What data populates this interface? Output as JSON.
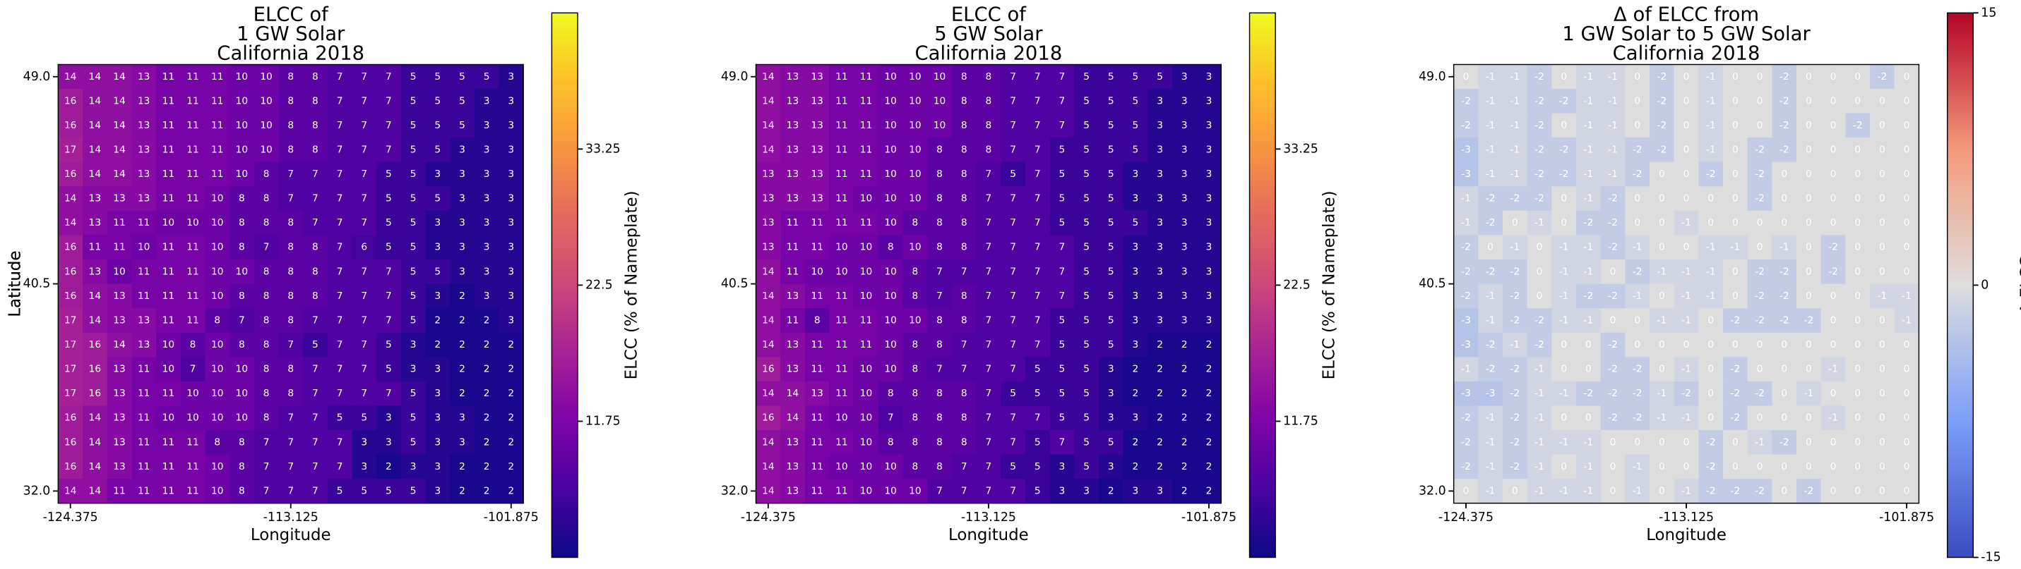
{
  "chart_data": [
    {
      "type": "heatmap",
      "title": [
        "ELCC of",
        "1 GW Solar",
        "California 2018"
      ],
      "xlabel": "Longitude",
      "ylabel": "Latitude",
      "xlim": [
        -125,
        -101.25
      ],
      "ylim": [
        31.5,
        49.5
      ],
      "xticks": [
        -124.375,
        -113.125,
        -101.875
      ],
      "yticks": [
        {
          "value": 49,
          "label": "49.0"
        },
        40.5,
        {
          "value": 32,
          "label": "32.0"
        }
      ],
      "cmap": "plasma",
      "clim": [
        1,
        44
      ],
      "cticks": [
        11.75,
        22.5,
        33.25
      ],
      "colorbar_label": "ELCC (% of Nameplate)",
      "z": [
        [
          14,
          14,
          14,
          13,
          11,
          11,
          11,
          10,
          10,
          8,
          8,
          7,
          7,
          7,
          5,
          5,
          5,
          5,
          3
        ],
        [
          16,
          14,
          14,
          13,
          11,
          11,
          11,
          10,
          10,
          8,
          8,
          7,
          7,
          7,
          5,
          5,
          5,
          3,
          3
        ],
        [
          16,
          14,
          14,
          13,
          11,
          11,
          11,
          10,
          10,
          8,
          8,
          7,
          7,
          7,
          5,
          5,
          5,
          3,
          3
        ],
        [
          17,
          14,
          14,
          13,
          11,
          11,
          11,
          10,
          10,
          8,
          8,
          7,
          7,
          7,
          5,
          5,
          3,
          3,
          3
        ],
        [
          16,
          14,
          14,
          13,
          11,
          11,
          11,
          10,
          8,
          7,
          7,
          7,
          7,
          5,
          5,
          3,
          3,
          3,
          3
        ],
        [
          14,
          13,
          13,
          13,
          11,
          11,
          10,
          8,
          8,
          7,
          7,
          7,
          7,
          5,
          5,
          5,
          3,
          3,
          3
        ],
        [
          14,
          13,
          11,
          11,
          10,
          10,
          10,
          8,
          8,
          8,
          7,
          7,
          7,
          5,
          5,
          3,
          3,
          3,
          3
        ],
        [
          16,
          11,
          11,
          10,
          11,
          11,
          10,
          8,
          7,
          8,
          8,
          7,
          6,
          5,
          5,
          3,
          3,
          3,
          3
        ],
        [
          16,
          13,
          10,
          11,
          11,
          11,
          10,
          10,
          8,
          8,
          8,
          7,
          7,
          7,
          5,
          5,
          3,
          3,
          3
        ],
        [
          16,
          14,
          13,
          11,
          11,
          11,
          10,
          8,
          8,
          8,
          8,
          7,
          7,
          7,
          5,
          3,
          2,
          3,
          3
        ],
        [
          17,
          14,
          13,
          13,
          11,
          11,
          8,
          7,
          8,
          8,
          7,
          7,
          7,
          7,
          5,
          2,
          2,
          2,
          3
        ],
        [
          17,
          16,
          14,
          13,
          10,
          8,
          10,
          8,
          8,
          7,
          5,
          7,
          7,
          5,
          3,
          2,
          2,
          2,
          2
        ],
        [
          17,
          16,
          13,
          11,
          10,
          7,
          10,
          10,
          8,
          8,
          7,
          7,
          7,
          5,
          3,
          3,
          2,
          2,
          2
        ],
        [
          17,
          16,
          13,
          11,
          11,
          10,
          10,
          10,
          8,
          8,
          7,
          7,
          7,
          7,
          5,
          3,
          2,
          2,
          2
        ],
        [
          16,
          14,
          13,
          11,
          10,
          10,
          10,
          10,
          8,
          7,
          7,
          5,
          5,
          3,
          5,
          3,
          3,
          2,
          2
        ],
        [
          16,
          14,
          13,
          11,
          11,
          11,
          8,
          8,
          7,
          7,
          7,
          7,
          3,
          3,
          5,
          3,
          3,
          2,
          2
        ],
        [
          16,
          14,
          13,
          11,
          11,
          11,
          10,
          8,
          7,
          7,
          7,
          7,
          3,
          2,
          3,
          3,
          2,
          2,
          2
        ],
        [
          14,
          14,
          11,
          11,
          11,
          11,
          10,
          8,
          7,
          7,
          7,
          5,
          5,
          5,
          5,
          3,
          2,
          2,
          2
        ]
      ]
    },
    {
      "type": "heatmap",
      "title": [
        "ELCC of",
        "5 GW Solar",
        "California 2018"
      ],
      "xlabel": "Longitude",
      "ylabel": "Latitude",
      "xlim": [
        -125,
        -101.25
      ],
      "ylim": [
        31.5,
        49.5
      ],
      "xticks": [
        -124.375,
        -113.125,
        -101.875
      ],
      "yticks": [
        {
          "value": 49,
          "label": "49.0"
        },
        40.5,
        {
          "value": 32,
          "label": "32.0"
        }
      ],
      "cmap": "plasma",
      "clim": [
        1,
        44
      ],
      "cticks": [
        11.75,
        22.5,
        33.25
      ],
      "colorbar_label": "ELCC (% of Nameplate)",
      "z": [
        [
          14,
          13,
          13,
          11,
          11,
          10,
          10,
          10,
          8,
          8,
          7,
          7,
          7,
          5,
          5,
          5,
          5,
          3,
          3
        ],
        [
          14,
          13,
          13,
          11,
          11,
          10,
          10,
          10,
          8,
          8,
          7,
          7,
          7,
          5,
          5,
          5,
          3,
          3,
          3
        ],
        [
          14,
          13,
          13,
          11,
          11,
          10,
          10,
          10,
          8,
          8,
          7,
          7,
          7,
          5,
          5,
          5,
          3,
          3,
          3
        ],
        [
          14,
          13,
          13,
          11,
          11,
          10,
          10,
          8,
          8,
          8,
          7,
          7,
          5,
          5,
          5,
          5,
          3,
          3,
          3
        ],
        [
          13,
          13,
          13,
          11,
          11,
          10,
          10,
          8,
          8,
          7,
          5,
          7,
          5,
          5,
          5,
          3,
          3,
          3,
          3
        ],
        [
          13,
          13,
          13,
          11,
          10,
          10,
          10,
          8,
          8,
          7,
          7,
          7,
          5,
          5,
          5,
          3,
          3,
          3,
          3
        ],
        [
          13,
          11,
          11,
          11,
          11,
          10,
          8,
          8,
          8,
          7,
          7,
          7,
          5,
          5,
          5,
          5,
          3,
          3,
          3
        ],
        [
          13,
          11,
          11,
          10,
          10,
          8,
          10,
          8,
          8,
          7,
          7,
          7,
          7,
          5,
          5,
          3,
          3,
          3,
          3
        ],
        [
          14,
          11,
          10,
          10,
          10,
          10,
          8,
          7,
          7,
          7,
          7,
          7,
          7,
          5,
          5,
          3,
          3,
          3,
          3
        ],
        [
          14,
          13,
          11,
          11,
          10,
          10,
          8,
          7,
          8,
          7,
          7,
          7,
          7,
          5,
          5,
          3,
          3,
          3,
          3
        ],
        [
          14,
          11,
          8,
          11,
          11,
          10,
          10,
          8,
          8,
          7,
          7,
          7,
          5,
          5,
          5,
          3,
          3,
          3,
          3
        ],
        [
          14,
          13,
          11,
          11,
          11,
          10,
          8,
          8,
          7,
          7,
          7,
          7,
          5,
          5,
          5,
          3,
          2,
          2,
          2
        ],
        [
          16,
          13,
          11,
          11,
          10,
          10,
          8,
          7,
          7,
          7,
          7,
          5,
          5,
          5,
          3,
          2,
          2,
          2,
          2
        ],
        [
          14,
          14,
          13,
          11,
          10,
          8,
          8,
          8,
          8,
          7,
          5,
          5,
          5,
          5,
          3,
          2,
          2,
          2,
          2
        ],
        [
          16,
          14,
          11,
          10,
          10,
          7,
          8,
          8,
          8,
          7,
          7,
          7,
          5,
          5,
          3,
          3,
          2,
          2,
          2
        ],
        [
          14,
          13,
          11,
          11,
          10,
          8,
          8,
          8,
          8,
          7,
          7,
          5,
          7,
          5,
          5,
          2,
          2,
          2,
          2
        ],
        [
          14,
          13,
          11,
          10,
          10,
          10,
          8,
          8,
          7,
          7,
          5,
          5,
          3,
          5,
          3,
          2,
          2,
          2,
          2
        ],
        [
          14,
          13,
          11,
          11,
          10,
          10,
          10,
          7,
          7,
          7,
          7,
          5,
          3,
          3,
          2,
          3,
          3,
          2,
          2
        ]
      ]
    },
    {
      "type": "heatmap",
      "title": [
        "Δ of ELCC from",
        "1 GW Solar to 5 GW Solar",
        "California 2018"
      ],
      "xlabel": "Longitude",
      "ylabel": "Latitude",
      "xlim": [
        -125,
        -101.25
      ],
      "ylim": [
        31.5,
        49.5
      ],
      "xticks": [
        -124.375,
        -113.125,
        -101.875
      ],
      "yticks": [
        {
          "value": 49,
          "label": "49.0"
        },
        40.5,
        {
          "value": 32,
          "label": "32.0"
        }
      ],
      "cmap": "coolwarm",
      "clim": [
        -15,
        15
      ],
      "cticks": [
        -15,
        0,
        15
      ],
      "colorbar_label": "Δ ELCC",
      "z": [
        [
          0,
          -1,
          -1,
          -2,
          0,
          -1,
          -1,
          0,
          -2,
          0,
          -1,
          0,
          0,
          -2,
          0,
          0,
          0,
          -2,
          0
        ],
        [
          -2,
          -1,
          -1,
          -2,
          -2,
          -1,
          -1,
          0,
          -2,
          0,
          -1,
          0,
          0,
          -2,
          0,
          0,
          0,
          0,
          0
        ],
        [
          -2,
          -1,
          -1,
          -2,
          0,
          -1,
          -1,
          0,
          -2,
          0,
          -1,
          0,
          0,
          -2,
          0,
          0,
          -2,
          0,
          0
        ],
        [
          -3,
          -1,
          -1,
          -2,
          -2,
          -1,
          -1,
          -2,
          -2,
          0,
          -1,
          0,
          -2,
          -2,
          0,
          0,
          0,
          0,
          0
        ],
        [
          -3,
          -1,
          -1,
          -2,
          -2,
          -1,
          -1,
          -2,
          0,
          0,
          -2,
          0,
          -2,
          0,
          0,
          0,
          0,
          0,
          0
        ],
        [
          -1,
          -2,
          -2,
          -2,
          0,
          -1,
          -2,
          0,
          0,
          0,
          0,
          0,
          -2,
          0,
          0,
          0,
          0,
          0,
          0
        ],
        [
          -1,
          -2,
          0,
          -1,
          0,
          -2,
          -2,
          0,
          0,
          -1,
          0,
          0,
          0,
          0,
          0,
          0,
          0,
          0,
          0
        ],
        [
          -2,
          0,
          -1,
          0,
          -1,
          -1,
          -2,
          -1,
          0,
          0,
          -1,
          -1,
          0,
          -1,
          0,
          -2,
          0,
          0,
          0
        ],
        [
          -2,
          -2,
          -2,
          0,
          -1,
          -1,
          0,
          -2,
          -1,
          -1,
          -1,
          0,
          -2,
          -2,
          0,
          -2,
          0,
          0,
          0
        ],
        [
          -2,
          -1,
          -2,
          0,
          -1,
          -2,
          -2,
          -1,
          0,
          -1,
          -1,
          0,
          -2,
          -2,
          0,
          0,
          0,
          -1,
          -1
        ],
        [
          -3,
          -1,
          -2,
          -2,
          -1,
          -1,
          0,
          0,
          -1,
          -1,
          0,
          -2,
          -2,
          -2,
          -2,
          0,
          0,
          0,
          -1
        ],
        [
          -3,
          -2,
          -1,
          -2,
          0,
          0,
          -2,
          0,
          0,
          0,
          0,
          0,
          0,
          0,
          0,
          0,
          0,
          0,
          0
        ],
        [
          -1,
          -2,
          -2,
          -1,
          0,
          0,
          -2,
          -2,
          0,
          -1,
          0,
          -2,
          0,
          0,
          0,
          -1,
          0,
          0,
          0
        ],
        [
          -3,
          -3,
          -2,
          -1,
          -1,
          -2,
          -2,
          -2,
          -1,
          -2,
          0,
          -2,
          -2,
          0,
          -1,
          0,
          0,
          0,
          0
        ],
        [
          -2,
          -1,
          -2,
          -1,
          0,
          0,
          -2,
          -2,
          -1,
          -1,
          0,
          -2,
          0,
          0,
          0,
          -1,
          0,
          0,
          0
        ],
        [
          -2,
          -1,
          -2,
          -1,
          -1,
          -1,
          0,
          0,
          0,
          0,
          -2,
          0,
          -1,
          -2,
          0,
          0,
          0,
          0,
          0
        ],
        [
          -2,
          -1,
          -2,
          -1,
          0,
          -1,
          0,
          -1,
          0,
          0,
          -2,
          0,
          0,
          0,
          0,
          0,
          0,
          0,
          0
        ],
        [
          0,
          -1,
          0,
          -1,
          -1,
          -1,
          0,
          -1,
          0,
          -1,
          -2,
          -2,
          -2,
          0,
          -2,
          0,
          0,
          0,
          0
        ]
      ]
    }
  ]
}
